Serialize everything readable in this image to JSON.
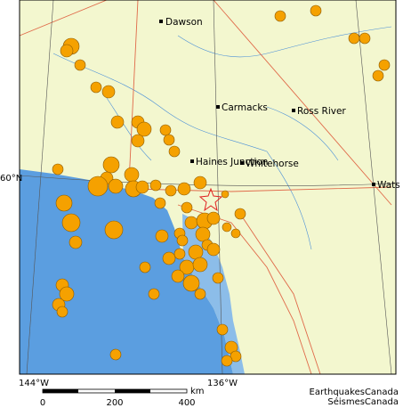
{
  "map": {
    "towns": [
      {
        "label": "Dawson"
      },
      {
        "label": "Carmacks"
      },
      {
        "label": "Ross River"
      },
      {
        "label": "Haines Junction"
      },
      {
        "label": "Whitehorse"
      },
      {
        "label": "Wats"
      }
    ],
    "grid_labels": {
      "lat": [
        "60°N"
      ],
      "lon": [
        "144°W",
        "136°W"
      ]
    },
    "scale": {
      "ticks": [
        "0",
        "200",
        "400"
      ],
      "unit": "km"
    },
    "credit": [
      "EarthquakesCanada",
      "SéismesCanada"
    ]
  }
}
